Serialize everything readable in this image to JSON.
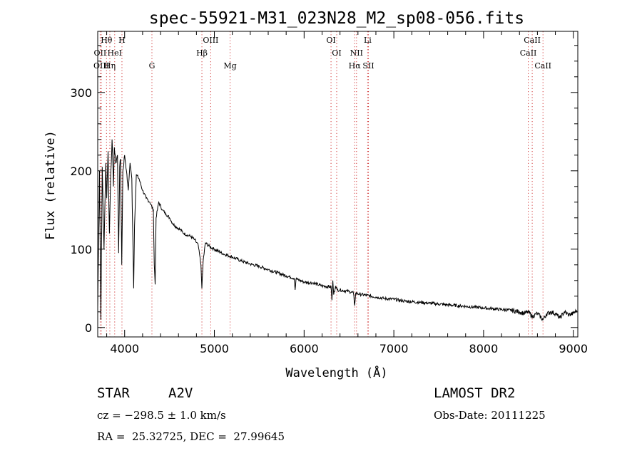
{
  "chart_data": {
    "type": "line",
    "title": "spec-55921-M31_023N28_M2_sp08-056.fits",
    "xlabel": "Wavelength (Å)",
    "ylabel": "Flux (relative)",
    "xlim": [
      3700,
      9050
    ],
    "ylim": [
      -12,
      378
    ],
    "x_ticks": [
      4000,
      5000,
      6000,
      7000,
      8000,
      9000
    ],
    "y_ticks": [
      0,
      100,
      200,
      300
    ],
    "series": [
      {
        "x": [
          3700,
          3720,
          3735,
          3750,
          3770,
          3790,
          3800,
          3815,
          3830,
          3845,
          3860,
          3875,
          3885,
          3900,
          3920,
          3933,
          3945,
          3955,
          3968,
          3980,
          4000,
          4020,
          4040,
          4060,
          4080,
          4090,
          4101,
          4110,
          4130,
          4160,
          4200,
          4240,
          4280,
          4320,
          4330,
          4340,
          4350,
          4380,
          4420,
          4460,
          4500,
          4540,
          4580,
          4620,
          4660,
          4700,
          4740,
          4780,
          4820,
          4850,
          4861,
          4875,
          4900,
          4950,
          5000,
          5100,
          5200,
          5300,
          5400,
          5500,
          5600,
          5700,
          5800,
          5890,
          5900,
          5910,
          6000,
          6100,
          6200,
          6300,
          6310,
          6320,
          6330,
          6350,
          6370,
          6400,
          6500,
          6550,
          6563,
          6575,
          6600,
          6700,
          6800,
          6900,
          7000,
          7100,
          7200,
          7300,
          7400,
          7500,
          7600,
          7700,
          7800,
          7900,
          8000,
          8100,
          8200,
          8300,
          8400,
          8450,
          8498,
          8542,
          8600,
          8662,
          8700,
          8750,
          8800,
          8850,
          8900,
          8950,
          9000,
          9040
        ],
        "y": [
          25,
          200,
          10,
          205,
          100,
          210,
          165,
          225,
          120,
          195,
          240,
          180,
          230,
          210,
          220,
          95,
          205,
          215,
          80,
          200,
          220,
          200,
          175,
          210,
          190,
          120,
          50,
          130,
          195,
          190,
          175,
          165,
          160,
          150,
          80,
          55,
          140,
          160,
          150,
          145,
          140,
          132,
          128,
          125,
          120,
          118,
          116,
          112,
          105,
          80,
          50,
          85,
          108,
          103,
          100,
          94,
          90,
          85,
          81,
          78,
          74,
          70,
          66,
          63,
          48,
          62,
          58,
          57,
          53,
          52,
          35,
          60,
          42,
          53,
          48,
          48,
          46,
          44,
          28,
          44,
          43,
          41,
          39,
          37,
          36,
          34,
          33,
          32,
          31,
          30,
          29,
          28,
          27,
          26,
          25,
          24,
          23,
          22,
          20,
          18,
          20,
          14,
          18,
          10,
          17,
          20,
          18,
          12,
          20,
          16,
          18,
          22
        ]
      }
    ],
    "line_markers": [
      {
        "name": "Hθ",
        "x": 3798,
        "row": 0
      },
      {
        "name": "H",
        "x": 3970,
        "row": 0
      },
      {
        "name": "OIII",
        "x": 4959,
        "row": 0
      },
      {
        "name": "OI",
        "x": 6300,
        "row": 0
      },
      {
        "name": "Li",
        "x": 6708,
        "row": 0
      },
      {
        "name": "CaII",
        "x": 8542,
        "row": 0
      },
      {
        "name": "OII",
        "x": 3727,
        "row": 1
      },
      {
        "name": "HeI",
        "x": 3889,
        "row": 1
      },
      {
        "name": "Hβ",
        "x": 4861,
        "row": 1
      },
      {
        "name": "OI",
        "x": 6363,
        "row": 1
      },
      {
        "name": "NII",
        "x": 6584,
        "row": 1
      },
      {
        "name": "CaII",
        "x": 8498,
        "row": 1
      },
      {
        "name": "OIII",
        "x": 3740,
        "row": 2
      },
      {
        "name": "Hη",
        "x": 3835,
        "row": 2
      },
      {
        "name": "G",
        "x": 4304,
        "row": 2
      },
      {
        "name": "Mg",
        "x": 5175,
        "row": 2
      },
      {
        "name": "Hα",
        "x": 6563,
        "row": 2
      },
      {
        "name": "SII",
        "x": 6717,
        "row": 2
      },
      {
        "name": "CaII",
        "x": 8662,
        "row": 2
      }
    ]
  },
  "info": {
    "class": "STAR",
    "subclass": "A2V",
    "survey": "LAMOST DR2",
    "cz": "cz = −298.5 ± 1.0 km/s",
    "obs_date": "Obs-Date: 20111225",
    "coords": "RA =  25.32725, DEC =  27.99645"
  }
}
